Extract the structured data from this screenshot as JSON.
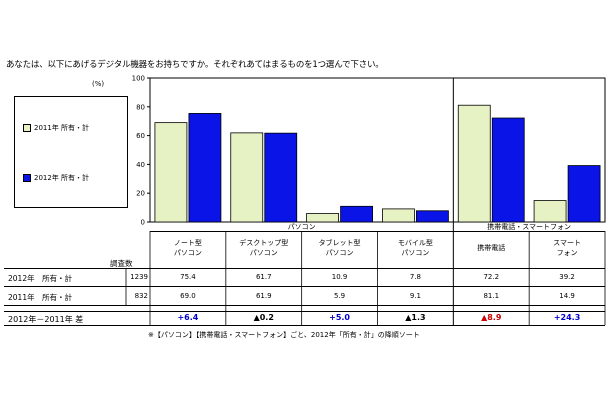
{
  "question": "あなたは、以下にあげるデジタル機器をお持ちですか。それぞれあてはまるものを1つ選んで下さい。",
  "unit": "(%)",
  "colors": {
    "y2011": "#e6f2c4",
    "y2012": "#0a14e6",
    "pos": "#0000cc",
    "neg": "#cc0000"
  },
  "chart_data": {
    "type": "bar",
    "categories": [
      "ノート型パソコン",
      "デスクトップ型パソコン",
      "タブレット型パソコン",
      "モバイル型パソコン",
      "携帯電話",
      "スマートフォン"
    ],
    "series": [
      {
        "name": "2011年 所有・計",
        "values": [
          69.0,
          61.9,
          5.9,
          9.1,
          81.1,
          14.9
        ]
      },
      {
        "name": "2012年 所有・計",
        "values": [
          75.4,
          61.7,
          10.9,
          7.8,
          72.2,
          39.2
        ]
      }
    ],
    "ylim": [
      0,
      100
    ],
    "yticks": [
      "0",
      "20",
      "40",
      "60",
      "80",
      "100"
    ],
    "groups": [
      "パソコン",
      "携帯電話・スマートフォン"
    ]
  },
  "table": {
    "header_count": "調査数",
    "col_labels": [
      [
        "ノート型",
        "パソコン"
      ],
      [
        "デスクトップ型",
        "パソコン"
      ],
      [
        "タブレット型",
        "パソコン"
      ],
      [
        "モバイル型",
        "パソコン"
      ],
      [
        "携帯電話",
        ""
      ],
      [
        "スマート",
        "フォン"
      ]
    ],
    "rows": [
      {
        "label": "2012年　所有・計",
        "n": "1239",
        "values": [
          "75.4",
          "61.7",
          "10.9",
          "7.8",
          "72.2",
          "39.2"
        ]
      },
      {
        "label": "2011年　所有・計",
        "n": "832",
        "values": [
          "69.0",
          "61.9",
          "5.9",
          "9.1",
          "81.1",
          "14.9"
        ]
      }
    ],
    "diff_label": "2012年－2011年 差",
    "diffs": [
      "+6.4",
      "▲0.2",
      "+5.0",
      "▲1.3",
      "▲8.9",
      "+24.3"
    ]
  },
  "note": "※【パソコン】【携帯電話・スマートフォン】ごと、2012年「所有・計」の降順ソート"
}
